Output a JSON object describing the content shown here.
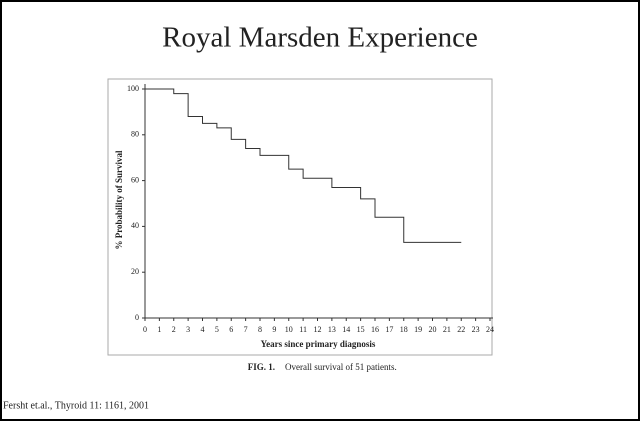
{
  "slide_title": "Royal Marsden Experience",
  "citation": "Fersht et.al., Thyroid 11: 1161, 2001",
  "chart_data": {
    "type": "step",
    "x_label": "Years since primary diagnosis",
    "y_label": "% Probability of Survival",
    "caption_label": "FIG. 1.",
    "caption": "Overall survival of 51 patients.",
    "x": [
      0,
      2,
      3,
      4,
      5,
      6,
      7,
      8,
      10,
      11,
      13,
      15,
      16,
      18,
      22
    ],
    "values": [
      100,
      98,
      88,
      85,
      83,
      78,
      74,
      71,
      65,
      61,
      57,
      52,
      44,
      33,
      33
    ],
    "color": "#333333",
    "xlim": [
      0,
      24
    ],
    "xticks": [
      0,
      1,
      2,
      3,
      4,
      5,
      6,
      7,
      8,
      9,
      10,
      11,
      12,
      13,
      14,
      15,
      16,
      17,
      18,
      19,
      20,
      21,
      22,
      23,
      24
    ],
    "ylim": [
      0,
      100
    ],
    "yticks": [
      0,
      20,
      40,
      60,
      80,
      100
    ]
  }
}
